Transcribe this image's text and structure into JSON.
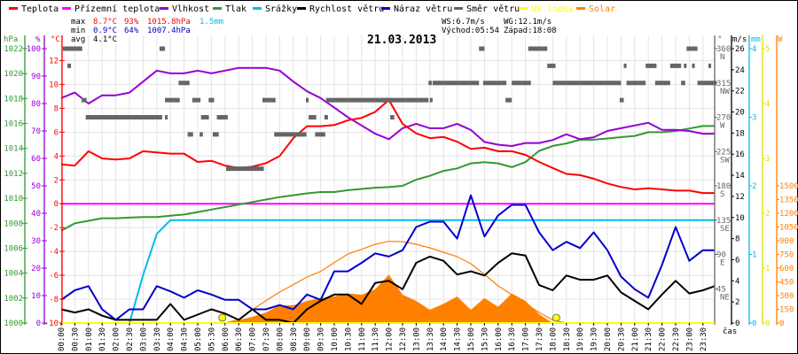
{
  "legend": [
    {
      "label": "Teplota",
      "color": "#ff0000"
    },
    {
      "label": "Přízemní teplota",
      "color": "#ff00ff"
    },
    {
      "label": "Vlhkost",
      "color": "#9400d3"
    },
    {
      "label": "Tlak",
      "color": "#339933"
    },
    {
      "label": "Srážky",
      "color": "#00bbee"
    },
    {
      "label": "Rychlost větru",
      "color": "#000000"
    },
    {
      "label": "Náraz větru",
      "color": "#0000cc"
    },
    {
      "label": "Směr větru",
      "color": "#666666"
    },
    {
      "label": "UV index",
      "color": "#ffff00"
    },
    {
      "label": "Solar",
      "color": "#ff8000"
    }
  ],
  "stats": {
    "max_label": "max",
    "min_label": "min",
    "avg_label": "avg",
    "max_temp": "8.7°C",
    "max_hum": "93%",
    "max_press": "1015.8hPa",
    "max_rain": "1.5mm",
    "min_temp": "0.9°C",
    "min_hum": "64%",
    "min_press": "1007.4hPa",
    "avg_temp": "4.1°C",
    "ws": "WS:6.7m/s",
    "wg": "WG:12.1m/s",
    "sunrise": "Východ:05:54",
    "sunset": "Západ:18:08"
  },
  "chart_data": {
    "type": "line",
    "title": "21.03.2013",
    "xlabel": "čas",
    "x_step_hours": 0.5,
    "x_tick_labels": [
      "00:00",
      "00:30",
      "01:00",
      "01:30",
      "02:00",
      "02:30",
      "03:00",
      "03:30",
      "04:00",
      "04:30",
      "05:00",
      "05:30",
      "06:00",
      "06:30",
      "07:00",
      "07:30",
      "08:00",
      "08:30",
      "09:00",
      "09:30",
      "10:00",
      "10:30",
      "11:00",
      "11:30",
      "12:00",
      "12:30",
      "13:00",
      "13:30",
      "14:00",
      "14:30",
      "15:00",
      "15:30",
      "16:00",
      "16:30",
      "17:00",
      "17:30",
      "18:00",
      "18:30",
      "19:00",
      "19:30",
      "20:00",
      "20:30",
      "21:00",
      "21:30",
      "22:00",
      "22:30",
      "23:00",
      "23:30"
    ],
    "grid": true,
    "axes": {
      "hPa": {
        "unit": "hPa",
        "range": [
          1000,
          1022
        ],
        "ticks": [
          1000,
          1002,
          1004,
          1006,
          1008,
          1010,
          1012,
          1014,
          1016,
          1018,
          1020,
          1022
        ],
        "labels": [
          "1000",
          "1002",
          "1004",
          "1006",
          "1008",
          "1010",
          "1012",
          "1014",
          "1016",
          "1018",
          "1020",
          "1022"
        ]
      },
      "pct": {
        "unit": "%",
        "range": [
          0,
          100
        ],
        "ticks": [
          0,
          10,
          20,
          30,
          40,
          50,
          60,
          70,
          80,
          90,
          100
        ],
        "labels": [
          "0",
          "10",
          "20",
          "30",
          "40",
          "50",
          "60",
          "70",
          "80",
          "90",
          "100"
        ]
      },
      "degC": {
        "unit": "°C",
        "range": [
          -10,
          13
        ],
        "ticks": [
          -10,
          -8,
          -6,
          -4,
          -2,
          0,
          2,
          4,
          6,
          8,
          10,
          12
        ],
        "labels": [
          "-10",
          "-8",
          "-6",
          "-4",
          "-2",
          "0",
          "2",
          "4",
          "6",
          "8",
          "10",
          "12"
        ]
      },
      "deg": {
        "unit": "°",
        "range": [
          0,
          360
        ],
        "ticks": [
          45,
          90,
          135,
          180,
          225,
          270,
          315,
          360
        ],
        "labels": [
          "45",
          "90",
          "135",
          "180",
          "225",
          "270",
          "315",
          "360"
        ],
        "compass": [
          "NE",
          "E",
          "SE",
          "S",
          "SW",
          "W",
          "NW",
          "N"
        ]
      },
      "ms": {
        "unit": "m/s",
        "range": [
          0,
          26
        ],
        "ticks": [
          0,
          2,
          4,
          6,
          8,
          10,
          12,
          14,
          16,
          18,
          20,
          22,
          24,
          26
        ],
        "labels": [
          "0",
          "2",
          "4",
          "6",
          "8",
          "10",
          "12",
          "14",
          "16",
          "18",
          "20",
          "22",
          "24",
          "26"
        ]
      },
      "mm": {
        "unit": "mm",
        "range": [
          0,
          4
        ],
        "ticks": [
          0,
          1,
          2,
          3,
          4
        ],
        "labels": [
          "0",
          "1",
          "2",
          "3",
          "4"
        ]
      },
      "uv": {
        "unit": "",
        "range": [
          0,
          5
        ],
        "ticks": [
          0,
          1,
          2,
          3,
          4,
          5
        ],
        "labels": [
          "0",
          "1",
          "2",
          "3",
          "4",
          "5"
        ]
      },
      "W": {
        "unit": "W",
        "range": [
          0,
          3000
        ],
        "ticks": [
          0,
          150,
          300,
          450,
          600,
          750,
          900,
          1050,
          1200,
          1350,
          1500
        ],
        "labels": [
          "0",
          "150",
          "300",
          "450",
          "600",
          "750",
          "900",
          "1050",
          "1200",
          "1350",
          "1500"
        ]
      }
    },
    "series": [
      {
        "name": "Solar (theoretical)",
        "axis": "W",
        "color": "#ff8000",
        "style": "thin",
        "values": [
          0,
          0,
          0,
          0,
          0,
          0,
          0,
          0,
          0,
          0,
          0,
          0,
          0,
          40,
          145,
          245,
          339,
          419,
          503,
          564,
          661,
          755,
          806,
          861,
          893,
          890,
          861,
          823,
          774,
          726,
          648,
          532,
          406,
          310,
          213,
          116,
          32,
          0,
          0,
          0,
          0,
          0,
          0,
          0,
          0,
          0,
          0,
          0,
          0
        ]
      },
      {
        "name": "Solar",
        "axis": "W",
        "color": "#ff8000",
        "style": "area",
        "values": [
          0,
          0,
          0,
          0,
          0,
          0,
          0,
          0,
          0,
          0,
          0,
          0,
          0,
          32,
          68,
          116,
          194,
          194,
          242,
          274,
          290,
          323,
          310,
          371,
          530,
          310,
          242,
          145,
          210,
          290,
          145,
          274,
          177,
          323,
          242,
          97,
          0,
          0,
          0,
          0,
          0,
          0,
          0,
          0,
          0,
          0,
          0,
          0,
          0
        ]
      },
      {
        "name": "UV index",
        "axis": "uv",
        "color": "#ffff00",
        "values": [
          0,
          0,
          0,
          0,
          0,
          0,
          0,
          0,
          0,
          0,
          0,
          0,
          0,
          0,
          0,
          0,
          0,
          0,
          0,
          0,
          0,
          0,
          0,
          0,
          0,
          0,
          0,
          0,
          0,
          0,
          0,
          0,
          0,
          0,
          0,
          0,
          0,
          0,
          0,
          0,
          0,
          0,
          0,
          0,
          0,
          0,
          0,
          0,
          0
        ]
      },
      {
        "name": "Přízemní teplota",
        "axis": "degC",
        "color": "#ff00ff",
        "values": [
          0,
          0,
          0,
          0,
          0,
          0,
          0,
          0,
          0,
          0,
          0,
          0,
          0,
          0,
          0,
          0,
          0,
          0,
          0,
          0,
          0,
          0,
          0,
          0,
          0,
          0,
          0,
          0,
          0,
          0,
          0,
          0,
          0,
          0,
          0,
          0,
          0,
          0,
          0,
          0,
          0,
          0,
          0,
          0,
          0,
          0,
          0,
          0,
          0
        ]
      },
      {
        "name": "Srážky",
        "axis": "mm",
        "color": "#00bbee",
        "values": [
          0,
          0,
          0,
          0,
          0,
          0,
          0.7,
          1.3,
          1.5,
          1.5,
          1.5,
          1.5,
          1.5,
          1.5,
          1.5,
          1.5,
          1.5,
          1.5,
          1.5,
          1.5,
          1.5,
          1.5,
          1.5,
          1.5,
          1.5,
          1.5,
          1.5,
          1.5,
          1.5,
          1.5,
          1.5,
          1.5,
          1.5,
          1.5,
          1.5,
          1.5,
          1.5,
          1.5,
          1.5,
          1.5,
          1.5,
          1.5,
          1.5,
          1.5,
          1.5,
          1.5,
          1.5,
          1.5,
          1.5
        ]
      },
      {
        "name": "Tlak",
        "axis": "hPa",
        "color": "#339933",
        "values": [
          1007.4,
          1008.0,
          1008.2,
          1008.4,
          1008.4,
          1008.45,
          1008.5,
          1008.5,
          1008.6,
          1008.7,
          1008.9,
          1009.1,
          1009.3,
          1009.5,
          1009.7,
          1009.9,
          1010.1,
          1010.25,
          1010.4,
          1010.5,
          1010.5,
          1010.65,
          1010.75,
          1010.85,
          1010.9,
          1011.0,
          1011.5,
          1011.8,
          1012.2,
          1012.4,
          1012.8,
          1012.9,
          1012.8,
          1012.5,
          1012.9,
          1013.8,
          1014.2,
          1014.4,
          1014.7,
          1014.7,
          1014.8,
          1014.9,
          1015.0,
          1015.3,
          1015.3,
          1015.4,
          1015.6,
          1015.8,
          1015.8
        ]
      },
      {
        "name": "Vlhkost",
        "axis": "pct",
        "color": "#9400d3",
        "values": [
          82,
          84,
          80,
          83,
          83,
          84,
          88,
          92,
          91,
          91,
          92,
          91,
          92,
          93,
          93,
          93,
          92,
          88,
          84.5,
          82,
          78.5,
          75,
          72,
          69,
          67,
          71,
          72.6,
          71,
          71,
          72.6,
          70.4,
          66,
          65,
          64.5,
          65.6,
          65.6,
          66.7,
          68.8,
          67,
          67.7,
          70,
          71,
          72,
          73,
          70.4,
          70.4,
          70,
          69,
          69
        ]
      },
      {
        "name": "Teplota",
        "axis": "degC",
        "color": "#ff0000",
        "values": [
          3.3,
          3.2,
          4.4,
          3.8,
          3.7,
          3.8,
          4.4,
          4.3,
          4.2,
          4.2,
          3.5,
          3.6,
          3.2,
          3.0,
          3.1,
          3.4,
          4.0,
          5.5,
          6.5,
          6.5,
          6.6,
          7.0,
          7.2,
          7.7,
          8.7,
          6.7,
          5.9,
          5.5,
          5.6,
          5.2,
          4.6,
          4.7,
          4.4,
          4.4,
          4.1,
          3.5,
          3.0,
          2.5,
          2.4,
          2.1,
          1.7,
          1.4,
          1.2,
          1.3,
          1.2,
          1.1,
          1.1,
          0.9,
          0.9
        ]
      },
      {
        "name": "Náraz větru",
        "axis": "ms",
        "color": "#0000cc",
        "values": [
          2.2,
          3.1,
          3.5,
          1.3,
          0.3,
          1.3,
          1.3,
          3.5,
          3.0,
          2.4,
          3.1,
          2.7,
          2.2,
          2.2,
          1.3,
          1.3,
          1.7,
          1.3,
          2.7,
          2.2,
          4.9,
          4.9,
          5.7,
          6.6,
          6.3,
          6.9,
          9.1,
          9.6,
          9.6,
          8.0,
          12.1,
          8.2,
          10.2,
          11.2,
          11.2,
          8.6,
          6.9,
          7.7,
          7.1,
          8.6,
          6.9,
          4.4,
          3.2,
          2.4,
          5.5,
          9.1,
          5.9,
          6.9,
          6.9
        ]
      },
      {
        "name": "Rychlost větru",
        "axis": "ms",
        "color": "#000000",
        "values": [
          1.3,
          1.0,
          1.3,
          0.7,
          0.3,
          0.3,
          0.3,
          0.3,
          1.8,
          0.3,
          0.8,
          1.3,
          0.9,
          0.3,
          1.3,
          0.3,
          0.3,
          0,
          1.3,
          2.1,
          2.7,
          2.7,
          1.8,
          3.8,
          4.0,
          3.2,
          5.7,
          6.3,
          5.9,
          4.6,
          4.9,
          4.5,
          5.7,
          6.6,
          6.4,
          3.6,
          3.1,
          4.5,
          4.1,
          4.1,
          4.5,
          2.9,
          2.1,
          1.3,
          2.7,
          4.0,
          2.8,
          3.1,
          3.5
        ]
      }
    ],
    "wind_direction": {
      "axis": "deg",
      "color": "#666666",
      "segments_hours_deg": [
        [
          0.06,
          0.77,
          360
        ],
        [
          3.6,
          3.8,
          360
        ],
        [
          0.23,
          0.36,
          337.5
        ],
        [
          0.75,
          0.93,
          292.5
        ],
        [
          0.9,
          3.7,
          270
        ],
        [
          3.8,
          3.9,
          270
        ],
        [
          4.3,
          4.7,
          315
        ],
        [
          3.8,
          4.34,
          292.5
        ],
        [
          4.8,
          5.1,
          292.5
        ],
        [
          5.4,
          5.6,
          292.5
        ],
        [
          7.37,
          7.85,
          292.5
        ],
        [
          8.96,
          9.06,
          292.5
        ],
        [
          9.7,
          12.05,
          292.5
        ],
        [
          5.12,
          5.41,
          270
        ],
        [
          5.7,
          6.1,
          270
        ],
        [
          9.06,
          9.34,
          270
        ],
        [
          9.64,
          9.77,
          270
        ],
        [
          4.63,
          4.83,
          247.5
        ],
        [
          5.07,
          5.19,
          247.5
        ],
        [
          5.55,
          5.77,
          247.5
        ],
        [
          7.8,
          8.98,
          247.5
        ],
        [
          9.3,
          9.67,
          247.5
        ],
        [
          6.04,
          7.42,
          202.5
        ],
        [
          15.3,
          15.5,
          360
        ],
        [
          17.1,
          17.8,
          360
        ],
        [
          22.9,
          23.3,
          360
        ],
        [
          17.8,
          18.1,
          337.5
        ],
        [
          20.6,
          20.7,
          337.5
        ],
        [
          21.4,
          21.8,
          337.5
        ],
        [
          22.3,
          22.7,
          337.5
        ],
        [
          22.8,
          22.9,
          337.5
        ],
        [
          23.1,
          23.2,
          337.5
        ],
        [
          23.7,
          23.8,
          337.5
        ],
        [
          13.45,
          13.57,
          315
        ],
        [
          13.6,
          15.3,
          315
        ],
        [
          15.45,
          16.3,
          315
        ],
        [
          16.5,
          17.2,
          315
        ],
        [
          18.0,
          20.5,
          315
        ],
        [
          20.7,
          21.4,
          315
        ],
        [
          21.75,
          22.3,
          315
        ],
        [
          22.7,
          22.85,
          315
        ],
        [
          23.3,
          24.0,
          315
        ],
        [
          11.7,
          13.45,
          292.5
        ],
        [
          13.5,
          13.6,
          292.5
        ],
        [
          16.27,
          16.5,
          292.5
        ],
        [
          20.45,
          20.6,
          292.5
        ],
        [
          12.05,
          12.2,
          270
        ]
      ]
    },
    "sun_markers_hours": [
      5.9,
      18.13
    ]
  }
}
